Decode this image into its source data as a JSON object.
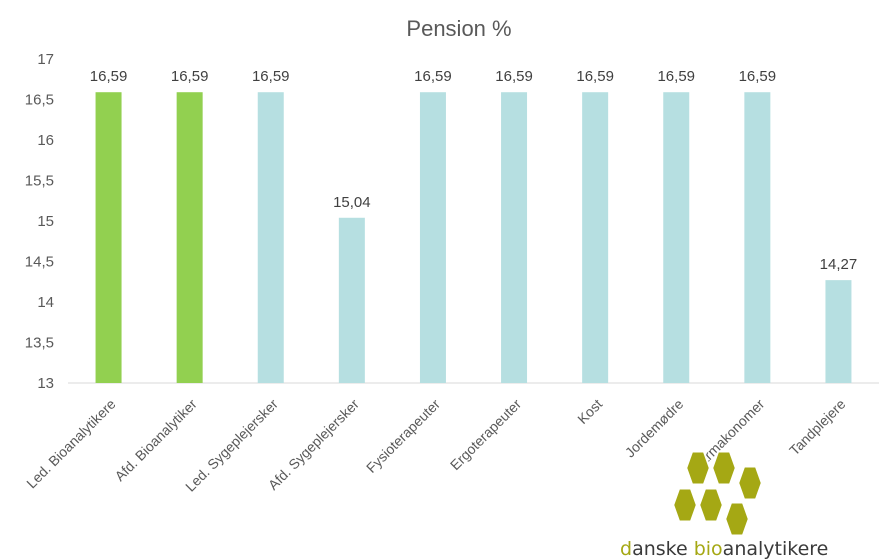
{
  "chart_data": {
    "type": "bar",
    "title": "Pension %",
    "xlabel": "",
    "ylabel": "",
    "ylim": [
      13,
      17
    ],
    "yticks": [
      13,
      13.5,
      14,
      14.5,
      15,
      15.5,
      16,
      16.5,
      17
    ],
    "ytick_labels": [
      "13",
      "13,5",
      "14",
      "14,5",
      "15",
      "15,5",
      "16",
      "16,5",
      "17"
    ],
    "grid": false,
    "legend": "none",
    "categories": [
      "Led. Bioanalytikere",
      "Afd. Bioanalytiker",
      "Led. Sygeplejersker",
      "Afd. Sygeplejersker",
      "Fysioterapeuter",
      "Ergoterapeuter",
      "Kost",
      "Jordemødre",
      "Farmakonomer",
      "Tandplejere"
    ],
    "values": [
      16.59,
      16.59,
      16.59,
      15.04,
      16.59,
      16.59,
      16.59,
      16.59,
      16.59,
      14.27
    ],
    "value_labels": [
      "16,59",
      "16,59",
      "16,59",
      "15,04",
      "16,59",
      "16,59",
      "16,59",
      "16,59",
      "16,59",
      "14,27"
    ],
    "bar_colors": [
      "#92d050",
      "#92d050",
      "#b6dfe1",
      "#b6dfe1",
      "#b6dfe1",
      "#b6dfe1",
      "#b6dfe1",
      "#b6dfe1",
      "#b6dfe1",
      "#b6dfe1"
    ]
  },
  "branding": {
    "logo_text_a": "d",
    "logo_text_b": "anske ",
    "logo_text_c": "bio",
    "logo_text_d": "analytikere",
    "logo_accent_color": "#a5a814",
    "logo_dark_color": "#3a3a3a",
    "logo_hex_color": "#a5a814"
  }
}
